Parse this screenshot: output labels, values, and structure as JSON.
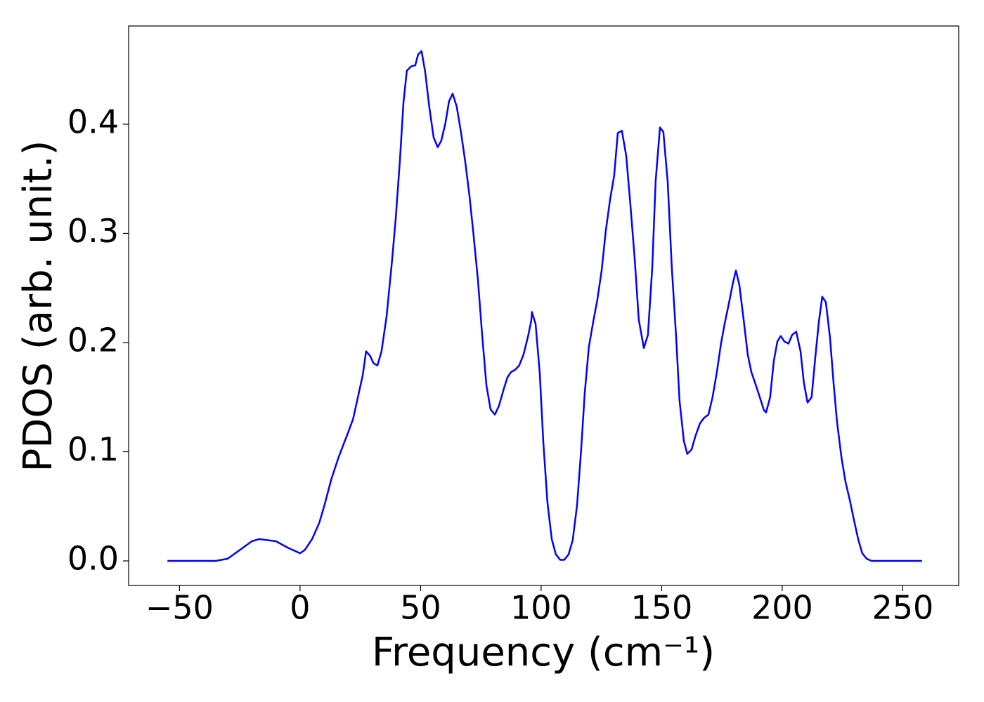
{
  "chart_data": {
    "type": "line",
    "xlabel": "Frequency (cm⁻¹)",
    "ylabel": "PDOS (arb. unit.)",
    "color": "#0000ff",
    "x": [
      -55,
      -35,
      -30,
      -25,
      -20,
      -17,
      -10,
      -5,
      0,
      2,
      5,
      8,
      10,
      13,
      16,
      20,
      22,
      24,
      26,
      27.4,
      29,
      30.5,
      32.1,
      33.8,
      35.9,
      38.2,
      39.7,
      41.4,
      42.9,
      44.3,
      46.1,
      47.8,
      49.0,
      50.4,
      51.9,
      53.6,
      55.4,
      57.1,
      58.6,
      60.3,
      61.8,
      63.3,
      65.0,
      66.8,
      68.5,
      70.3,
      72.0,
      73.8,
      75.5,
      77.3,
      79.0,
      80.8,
      82.5,
      84.3,
      86.0,
      87.5,
      89.2,
      90.9,
      92.7,
      94.5,
      95.9,
      96.2,
      97.7,
      99.4,
      100.9,
      102.6,
      104.4,
      106.1,
      107.9,
      109.6,
      111.4,
      113.1,
      114.9,
      116.6,
      118.1,
      119.8,
      121.6,
      123.3,
      125.1,
      126.8,
      128.6,
      130.3,
      131.8,
      133.5,
      135.3,
      137.0,
      138.8,
      140.5,
      142.6,
      144.3,
      146.1,
      147.5,
      149.3,
      150.7,
      152.5,
      154.2,
      156.0,
      157.4,
      159.2,
      160.6,
      162.4,
      164.1,
      165.9,
      167.6,
      169.4,
      171.1,
      172.9,
      174.6,
      176.1,
      177.8,
      179.6,
      180.8,
      182.2,
      184.0,
      185.7,
      187.2,
      188.9,
      190.7,
      192.4,
      193.3,
      195.0,
      196.5,
      198.0,
      199.4,
      200.9,
      202.6,
      204.1,
      205.8,
      207.6,
      209.0,
      210.5,
      212.2,
      213.7,
      215.2,
      216.6,
      218.1,
      219.8,
      221.3,
      222.7,
      224.5,
      226.2,
      228.0,
      229.7,
      231.5,
      233.2,
      235.0,
      237.0,
      258
    ],
    "values": [
      0,
      0,
      0.002,
      0.01,
      0.018,
      0.02,
      0.018,
      0.012,
      0.007,
      0.01,
      0.02,
      0.035,
      0.05,
      0.075,
      0.095,
      0.118,
      0.13,
      0.15,
      0.17,
      0.192,
      0.188,
      0.181,
      0.179,
      0.192,
      0.224,
      0.276,
      0.314,
      0.366,
      0.42,
      0.449,
      0.453,
      0.454,
      0.464,
      0.467,
      0.448,
      0.416,
      0.388,
      0.379,
      0.385,
      0.401,
      0.421,
      0.428,
      0.416,
      0.392,
      0.366,
      0.334,
      0.298,
      0.257,
      0.208,
      0.161,
      0.139,
      0.134,
      0.142,
      0.156,
      0.168,
      0.173,
      0.175,
      0.179,
      0.189,
      0.205,
      0.22,
      0.228,
      0.217,
      0.173,
      0.109,
      0.054,
      0.02,
      0.006,
      0.001,
      0.001,
      0.006,
      0.019,
      0.051,
      0.102,
      0.154,
      0.196,
      0.219,
      0.239,
      0.266,
      0.302,
      0.331,
      0.353,
      0.392,
      0.394,
      0.371,
      0.327,
      0.277,
      0.221,
      0.195,
      0.207,
      0.269,
      0.348,
      0.397,
      0.393,
      0.347,
      0.269,
      0.205,
      0.147,
      0.11,
      0.098,
      0.102,
      0.115,
      0.126,
      0.131,
      0.134,
      0.15,
      0.173,
      0.199,
      0.217,
      0.235,
      0.255,
      0.266,
      0.253,
      0.221,
      0.189,
      0.173,
      0.162,
      0.15,
      0.138,
      0.136,
      0.15,
      0.183,
      0.201,
      0.206,
      0.201,
      0.199,
      0.207,
      0.21,
      0.192,
      0.163,
      0.145,
      0.15,
      0.186,
      0.219,
      0.242,
      0.237,
      0.205,
      0.163,
      0.128,
      0.096,
      0.073,
      0.056,
      0.038,
      0.02,
      0.007,
      0.002,
      0,
      0
    ],
    "xlim": [
      -71.1,
      273.2
    ],
    "ylim": [
      -0.0225,
      0.49
    ],
    "xticks": [
      {
        "value": -50,
        "label": "−50"
      },
      0,
      50,
      100,
      150,
      200,
      250
    ],
    "yticks": [
      {
        "value": 0,
        "label": "0.0"
      },
      0.1,
      0.2,
      0.3,
      0.4
    ]
  }
}
